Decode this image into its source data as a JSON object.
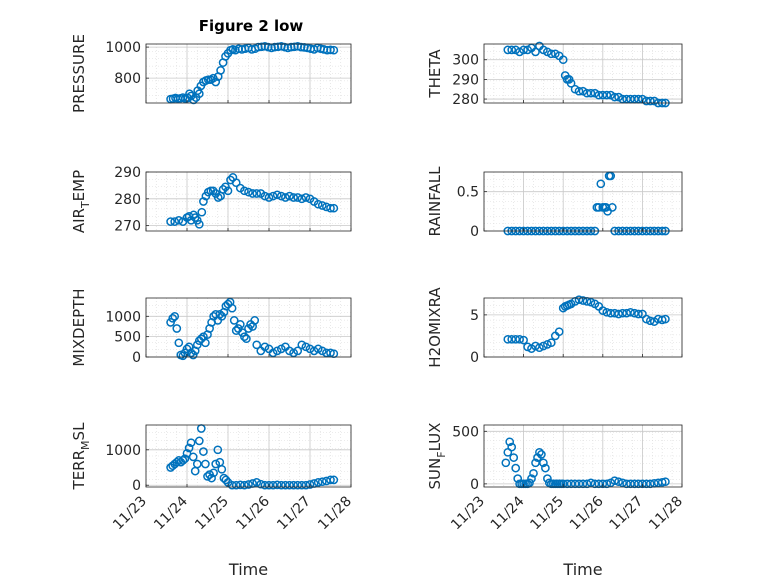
{
  "figure_title": "Figure 2 low",
  "marker_color": "#0072bd",
  "chart_data": [
    {
      "type": "scatter",
      "title": "Figure 2 low",
      "ylabel": "PRESSURE",
      "xlabel": "",
      "ylim": [
        640,
        1020
      ],
      "yticks": [
        800,
        1000
      ],
      "xlim": [
        "11/23",
        "11/28"
      ],
      "xticks": [
        "11/23",
        "11/24",
        "11/25",
        "11/26",
        "11/27",
        "11/28"
      ],
      "grid": true,
      "x": [
        0.6,
        0.66,
        0.72,
        0.78,
        0.84,
        0.9,
        0.96,
        1.02,
        1.06,
        1.1,
        1.16,
        1.22,
        1.26,
        1.3,
        1.34,
        1.4,
        1.46,
        1.52,
        1.58,
        1.64,
        1.7,
        1.76,
        1.82,
        1.88,
        1.94,
        2.0,
        2.06,
        2.12,
        2.18,
        2.26,
        2.34,
        2.42,
        2.5,
        2.58,
        2.66,
        2.74,
        2.82,
        2.9,
        2.98,
        3.06,
        3.14,
        3.22,
        3.3,
        3.38,
        3.46,
        3.54,
        3.62,
        3.7,
        3.78,
        3.86,
        3.94,
        4.02,
        4.1,
        4.18,
        4.26,
        4.34,
        4.42,
        4.5,
        4.58
      ],
      "y": [
        665,
        668,
        672,
        668,
        670,
        675,
        668,
        672,
        700,
        685,
        660,
        675,
        720,
        700,
        750,
        775,
        785,
        790,
        790,
        800,
        775,
        810,
        850,
        900,
        940,
        960,
        980,
        985,
        980,
        990,
        985,
        990,
        995,
        985,
        990,
        1000,
        1002,
        1005,
        1000,
        995,
        1000,
        1002,
        1005,
        1000,
        995,
        1000,
        1002,
        1005,
        1000,
        998,
        995,
        990,
        985,
        995,
        990,
        985,
        980,
        982,
        980
      ]
    },
    {
      "type": "scatter",
      "ylabel": "THETA",
      "xlabel": "",
      "ylim": [
        278,
        308
      ],
      "yticks": [
        280,
        290,
        300
      ],
      "xlim": [
        "11/23",
        "11/28"
      ],
      "xticks": [
        "11/23",
        "11/24",
        "11/25",
        "11/26",
        "11/27",
        "11/28"
      ],
      "grid": true,
      "x": [
        0.6,
        0.7,
        0.8,
        0.9,
        1.0,
        1.1,
        1.2,
        1.3,
        1.4,
        1.5,
        1.6,
        1.7,
        1.8,
        1.9,
        2.0,
        2.05,
        2.1,
        2.15,
        2.2,
        2.3,
        2.4,
        2.5,
        2.6,
        2.7,
        2.8,
        2.9,
        3.0,
        3.1,
        3.2,
        3.3,
        3.4,
        3.5,
        3.6,
        3.7,
        3.8,
        3.9,
        4.0,
        4.1,
        4.2,
        4.3,
        4.4,
        4.5,
        4.58
      ],
      "y": [
        305,
        305,
        305,
        304,
        305,
        305,
        306,
        304,
        307,
        305,
        304,
        303,
        303,
        302,
        300,
        292,
        290,
        290,
        288,
        285,
        284,
        284,
        283,
        283,
        283,
        282,
        282,
        282,
        282,
        281,
        281,
        280,
        280,
        280,
        280,
        280,
        280,
        279,
        279,
        279,
        278,
        278,
        278
      ]
    },
    {
      "type": "scatter",
      "ylabel": "AIR_TEMP",
      "xlabel": "",
      "ylim": [
        268,
        290
      ],
      "yticks": [
        270,
        280,
        290
      ],
      "xlim": [
        "11/23",
        "11/28"
      ],
      "xticks": [
        "11/23",
        "11/24",
        "11/25",
        "11/26",
        "11/27",
        "11/28"
      ],
      "grid": true,
      "x": [
        0.6,
        0.7,
        0.8,
        0.9,
        1.0,
        1.05,
        1.1,
        1.16,
        1.2,
        1.25,
        1.3,
        1.36,
        1.4,
        1.46,
        1.52,
        1.58,
        1.64,
        1.7,
        1.76,
        1.82,
        1.88,
        1.94,
        2.0,
        2.06,
        2.12,
        2.2,
        2.3,
        2.4,
        2.5,
        2.6,
        2.7,
        2.8,
        2.9,
        3.0,
        3.1,
        3.2,
        3.3,
        3.4,
        3.5,
        3.6,
        3.7,
        3.8,
        3.9,
        4.0,
        4.1,
        4.2,
        4.3,
        4.4,
        4.5,
        4.58
      ],
      "y": [
        271.5,
        271.5,
        272,
        271.5,
        273,
        273.5,
        272,
        274,
        273,
        272,
        270.5,
        275,
        279,
        281,
        282.5,
        283,
        283,
        282,
        280.5,
        281,
        283.5,
        284.5,
        283,
        287,
        288,
        286,
        284,
        283,
        282.5,
        282,
        282,
        282,
        281,
        280.5,
        281,
        281.5,
        281,
        280.5,
        281,
        280.5,
        280.5,
        280,
        280.5,
        280,
        279,
        278,
        277.5,
        277,
        276.5,
        276.5
      ]
    },
    {
      "type": "scatter",
      "ylabel": "RAINFALL",
      "xlabel": "",
      "ylim": [
        0,
        0.75
      ],
      "yticks": [
        0,
        0.5
      ],
      "xlim": [
        "11/23",
        "11/28"
      ],
      "xticks": [
        "11/23",
        "11/24",
        "11/25",
        "11/26",
        "11/27",
        "11/28"
      ],
      "grid": true,
      "x": [
        0.6,
        0.7,
        0.8,
        0.9,
        1.0,
        1.1,
        1.2,
        1.3,
        1.4,
        1.5,
        1.6,
        1.7,
        1.8,
        1.9,
        2.0,
        2.1,
        2.2,
        2.3,
        2.4,
        2.5,
        2.6,
        2.7,
        2.8,
        2.85,
        2.9,
        2.95,
        3.0,
        3.05,
        3.08,
        3.12,
        3.16,
        3.2,
        3.24,
        3.3,
        3.4,
        3.5,
        3.6,
        3.7,
        3.8,
        3.9,
        4.0,
        4.1,
        4.2,
        4.3,
        4.4,
        4.5,
        4.58
      ],
      "y": [
        0,
        0,
        0,
        0,
        0,
        0,
        0,
        0,
        0,
        0,
        0,
        0,
        0,
        0,
        0,
        0,
        0,
        0,
        0,
        0,
        0,
        0,
        0,
        0.3,
        0.3,
        0.6,
        0.3,
        0.3,
        0.3,
        0.25,
        0.7,
        0.7,
        0.3,
        0,
        0,
        0,
        0,
        0,
        0,
        0,
        0,
        0,
        0,
        0,
        0,
        0,
        0
      ]
    },
    {
      "type": "scatter",
      "ylabel": "MIXDEPTH",
      "xlabel": "",
      "ylim": [
        0,
        1450
      ],
      "yticks": [
        0,
        500,
        1000
      ],
      "xlim": [
        "11/23",
        "11/28"
      ],
      "xticks": [
        "11/23",
        "11/24",
        "11/25",
        "11/26",
        "11/27",
        "11/28"
      ],
      "grid": true,
      "x": [
        0.6,
        0.65,
        0.7,
        0.75,
        0.8,
        0.85,
        0.9,
        0.95,
        1.0,
        1.05,
        1.1,
        1.15,
        1.2,
        1.25,
        1.3,
        1.35,
        1.4,
        1.45,
        1.5,
        1.55,
        1.6,
        1.65,
        1.7,
        1.75,
        1.8,
        1.85,
        1.9,
        1.95,
        2.0,
        2.05,
        2.1,
        2.15,
        2.2,
        2.25,
        2.3,
        2.35,
        2.4,
        2.45,
        2.5,
        2.55,
        2.6,
        2.65,
        2.7,
        2.8,
        2.9,
        3.0,
        3.1,
        3.2,
        3.3,
        3.4,
        3.5,
        3.6,
        3.7,
        3.8,
        3.9,
        4.0,
        4.1,
        4.2,
        4.3,
        4.4,
        4.5,
        4.58
      ],
      "y": [
        850,
        950,
        1000,
        700,
        350,
        50,
        30,
        100,
        200,
        250,
        100,
        50,
        150,
        300,
        400,
        450,
        500,
        350,
        550,
        700,
        850,
        1000,
        1050,
        900,
        1050,
        1000,
        1100,
        1250,
        1300,
        1350,
        1200,
        900,
        650,
        700,
        800,
        600,
        500,
        450,
        700,
        800,
        750,
        900,
        300,
        150,
        250,
        200,
        100,
        150,
        200,
        250,
        150,
        100,
        150,
        300,
        250,
        200,
        150,
        200,
        150,
        100,
        100,
        80
      ]
    },
    {
      "type": "scatter",
      "ylabel": "H2OMIXRA",
      "xlabel": "",
      "ylim": [
        0,
        7
      ],
      "yticks": [
        0,
        5
      ],
      "xlim": [
        "11/23",
        "11/28"
      ],
      "xticks": [
        "11/23",
        "11/24",
        "11/25",
        "11/26",
        "11/27",
        "11/28"
      ],
      "grid": true,
      "x": [
        0.6,
        0.7,
        0.8,
        0.9,
        1.0,
        1.1,
        1.2,
        1.3,
        1.4,
        1.5,
        1.6,
        1.7,
        1.8,
        1.9,
        2.0,
        2.05,
        2.1,
        2.15,
        2.2,
        2.3,
        2.4,
        2.5,
        2.6,
        2.7,
        2.8,
        2.9,
        3.0,
        3.1,
        3.2,
        3.3,
        3.4,
        3.5,
        3.6,
        3.7,
        3.8,
        3.9,
        4.0,
        4.1,
        4.2,
        4.3,
        4.4,
        4.5,
        4.58
      ],
      "y": [
        2.1,
        2.1,
        2.1,
        2.1,
        2.0,
        1.2,
        1.0,
        1.3,
        1.1,
        1.3,
        1.5,
        1.7,
        2.5,
        3.0,
        5.8,
        6.0,
        6.1,
        6.2,
        6.3,
        6.6,
        6.8,
        6.7,
        6.6,
        6.5,
        6.3,
        6.0,
        5.5,
        5.3,
        5.2,
        5.2,
        5.1,
        5.2,
        5.2,
        5.3,
        5.2,
        5.1,
        5.1,
        4.5,
        4.3,
        4.2,
        4.5,
        4.4,
        4.5
      ]
    },
    {
      "type": "scatter",
      "ylabel": "TERR_MSL",
      "xlabel": "Time",
      "ylim": [
        -50,
        1700
      ],
      "yticks": [
        0,
        1000
      ],
      "xlim": [
        "11/23",
        "11/28"
      ],
      "xticks": [
        "11/23",
        "11/24",
        "11/25",
        "11/26",
        "11/27",
        "11/28"
      ],
      "grid": true,
      "x": [
        0.6,
        0.65,
        0.7,
        0.75,
        0.8,
        0.85,
        0.9,
        0.95,
        1.0,
        1.05,
        1.1,
        1.15,
        1.2,
        1.25,
        1.3,
        1.35,
        1.4,
        1.45,
        1.5,
        1.55,
        1.6,
        1.65,
        1.7,
        1.75,
        1.8,
        1.85,
        1.9,
        1.95,
        2.0,
        2.1,
        2.2,
        2.3,
        2.4,
        2.5,
        2.6,
        2.7,
        2.8,
        2.9,
        3.0,
        3.1,
        3.2,
        3.3,
        3.4,
        3.5,
        3.6,
        3.7,
        3.8,
        3.9,
        4.0,
        4.1,
        4.2,
        4.3,
        4.4,
        4.5,
        4.58
      ],
      "y": [
        500,
        550,
        600,
        650,
        700,
        650,
        700,
        750,
        900,
        1050,
        1200,
        800,
        400,
        600,
        1250,
        1600,
        950,
        600,
        250,
        300,
        200,
        350,
        600,
        1000,
        650,
        450,
        200,
        150,
        80,
        0,
        0,
        10,
        0,
        20,
        50,
        80,
        30,
        0,
        0,
        0,
        10,
        0,
        0,
        0,
        0,
        0,
        0,
        0,
        20,
        50,
        80,
        100,
        120,
        150,
        150
      ]
    },
    {
      "type": "scatter",
      "ylabel": "SUN_FLUX",
      "xlabel": "Time",
      "ylim": [
        -30,
        560
      ],
      "yticks": [
        0,
        500
      ],
      "xlim": [
        "11/23",
        "11/28"
      ],
      "xticks": [
        "11/23",
        "11/24",
        "11/25",
        "11/26",
        "11/27",
        "11/28"
      ],
      "grid": true,
      "x": [
        0.55,
        0.6,
        0.65,
        0.7,
        0.75,
        0.8,
        0.85,
        0.9,
        0.95,
        1.0,
        1.05,
        1.1,
        1.15,
        1.2,
        1.25,
        1.3,
        1.35,
        1.4,
        1.45,
        1.5,
        1.55,
        1.6,
        1.65,
        1.7,
        1.75,
        1.8,
        1.85,
        1.9,
        1.95,
        2.0,
        2.1,
        2.2,
        2.3,
        2.4,
        2.5,
        2.6,
        2.7,
        2.8,
        2.9,
        3.0,
        3.1,
        3.2,
        3.3,
        3.4,
        3.5,
        3.6,
        3.7,
        3.8,
        3.9,
        4.0,
        4.1,
        4.2,
        4.3,
        4.4,
        4.5,
        4.58
      ],
      "y": [
        200,
        300,
        400,
        350,
        250,
        150,
        50,
        0,
        0,
        0,
        0,
        0,
        10,
        50,
        100,
        200,
        250,
        300,
        280,
        200,
        150,
        50,
        10,
        0,
        0,
        0,
        0,
        0,
        0,
        0,
        0,
        0,
        0,
        0,
        0,
        0,
        10,
        0,
        0,
        0,
        0,
        10,
        30,
        20,
        10,
        0,
        0,
        0,
        0,
        0,
        0,
        0,
        5,
        10,
        15,
        20
      ]
    }
  ]
}
